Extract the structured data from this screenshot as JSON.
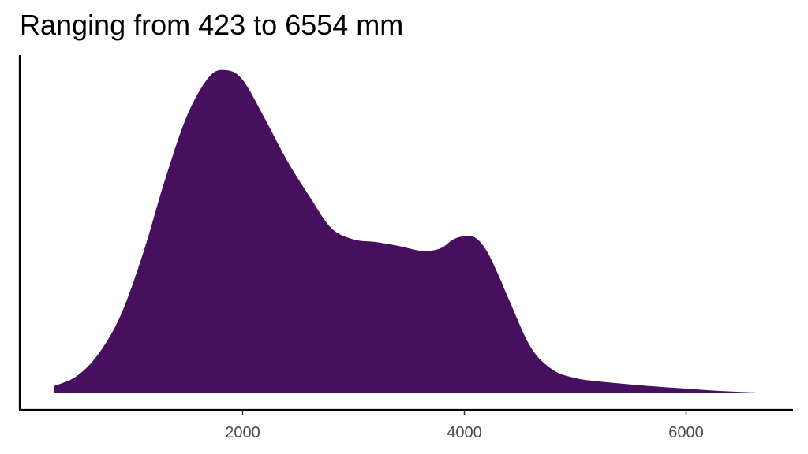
{
  "chart_data": {
    "type": "area",
    "title": "Ranging from 423 to 6554 mm",
    "xlabel": "",
    "ylabel": "",
    "xlim": [
      0,
      7100
    ],
    "ylim": [
      0,
      1
    ],
    "x_ticks": [
      2000,
      4000,
      6000
    ],
    "x_tick_labels": [
      "2000",
      "4000",
      "6000"
    ],
    "grid": false,
    "legend": "none",
    "fill_color": "#46105E",
    "axis_color": "#000000",
    "tick_label_color": "#4d4d4d",
    "series": [
      {
        "x": [
          300,
          500,
          700,
          900,
          1100,
          1300,
          1500,
          1700,
          1850,
          2000,
          2200,
          2400,
          2600,
          2800,
          3000,
          3200,
          3400,
          3600,
          3700,
          3800,
          3900,
          4000,
          4100,
          4200,
          4300,
          4400,
          4600,
          4800,
          5000,
          5200,
          5600,
          6000,
          6300,
          6650
        ],
        "y": [
          0.02,
          0.05,
          0.12,
          0.24,
          0.43,
          0.66,
          0.86,
          0.98,
          1.0,
          0.97,
          0.85,
          0.72,
          0.61,
          0.51,
          0.475,
          0.467,
          0.455,
          0.44,
          0.44,
          0.45,
          0.475,
          0.485,
          0.48,
          0.44,
          0.37,
          0.29,
          0.14,
          0.07,
          0.045,
          0.035,
          0.022,
          0.012,
          0.005,
          0.0
        ]
      }
    ]
  }
}
